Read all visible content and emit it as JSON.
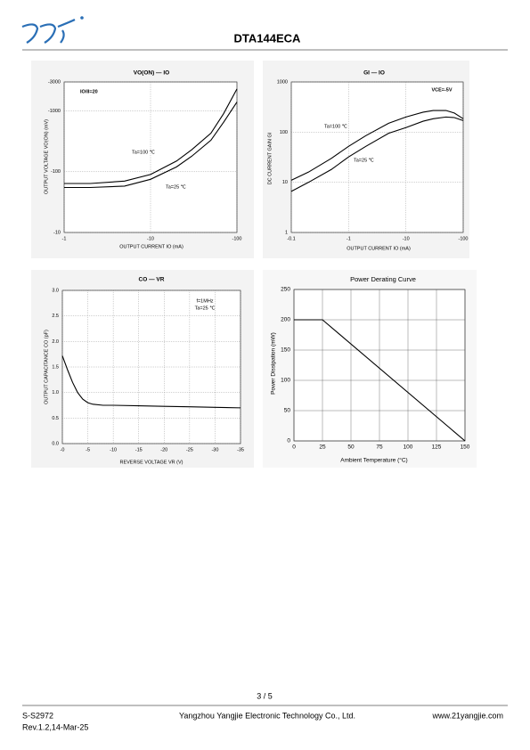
{
  "header": {
    "title": "DTA144ECA"
  },
  "footer": {
    "page": "3 / 5",
    "doc": "S-S2972",
    "rev": "Rev.1.2,14-Mar-25",
    "company": "Yangzhou Yangjie Electronic Technology Co., Ltd.",
    "website": "www.21yangjie.com"
  },
  "chart_data": [
    {
      "type": "line",
      "title": "VO(ON) — IO",
      "x_label": "OUTPUT CURRENT IO (mA)",
      "y_label": "OUTPUT VOLTAGE VO(ON) (mV)",
      "xlog": true,
      "ylog": true,
      "grid": true,
      "xlim": [
        -1,
        -100
      ],
      "ylim": [
        -10,
        -3000
      ],
      "xticks": [
        -1,
        -10,
        -100
      ],
      "yticks": [
        -10,
        -100,
        -1000,
        -3000
      ],
      "x": [
        -1,
        -2,
        -5,
        -10,
        -20,
        -30,
        -50,
        -70,
        -100
      ],
      "series": [
        {
          "name": "Ta=100 ℃",
          "color": "#000000",
          "values": [
            -64,
            -64,
            -70,
            -90,
            -150,
            -230,
            -430,
            -900,
            -2300
          ]
        },
        {
          "name": "Ta=25 ℃",
          "color": "#000000",
          "values": [
            -55,
            -55,
            -58,
            -75,
            -120,
            -180,
            -330,
            -650,
            -1400
          ]
        }
      ],
      "annotations": [
        "IO/II=20"
      ]
    },
    {
      "type": "line",
      "title": "GI — IO",
      "x_label": "OUTPUT CURRENT IO (mA)",
      "y_label": "DC CURRENT GAIN GI",
      "xlog": true,
      "ylog": true,
      "grid": true,
      "xlim": [
        -0.1,
        -100
      ],
      "ylim": [
        1,
        1000
      ],
      "xticks": [
        -0.1,
        -1,
        -10,
        -100
      ],
      "yticks": [
        1,
        10,
        100,
        1000
      ],
      "x": [
        -0.1,
        -0.2,
        -0.5,
        -1,
        -2,
        -5,
        -10,
        -20,
        -30,
        -50,
        -70,
        -100
      ],
      "series": [
        {
          "name": "Ta=100 ℃",
          "color": "#000000",
          "values": [
            11,
            16,
            30,
            52,
            85,
            150,
            200,
            250,
            270,
            270,
            240,
            185
          ]
        },
        {
          "name": "Ta=25 ℃",
          "color": "#000000",
          "values": [
            6.6,
            10,
            18,
            32,
            52,
            95,
            123,
            165,
            185,
            200,
            195,
            170
          ]
        }
      ],
      "annotations": [
        "VCE=-5V"
      ]
    },
    {
      "type": "line",
      "title": "CO — VR",
      "x_label": "REVERSE VOLTAGE VR (V)",
      "y_label": "OUTPUT CAPACITANCE CO (pF)",
      "grid": true,
      "color": "#000000",
      "xlim": [
        0,
        -35
      ],
      "ylim": [
        0,
        3.0
      ],
      "xticks": [
        {
          "value": 0,
          "label": "-0"
        },
        -5,
        -10,
        -15,
        -20,
        -25,
        -30,
        -35
      ],
      "yticks": [
        {
          "value": 0,
          "label": "0.0"
        },
        0.5,
        {
          "value": 1,
          "label": "1.0"
        },
        1.5,
        {
          "value": 2,
          "label": "2.0"
        },
        2.5,
        {
          "value": 3,
          "label": "3.0"
        }
      ],
      "x": [
        0,
        -1,
        -2,
        -3,
        -4,
        -5,
        -6,
        -8,
        -10,
        -15,
        -20,
        -25,
        -30,
        -35
      ],
      "values": [
        1.72,
        1.45,
        1.2,
        1.0,
        0.87,
        0.8,
        0.77,
        0.75,
        0.75,
        0.74,
        0.73,
        0.72,
        0.71,
        0.7
      ],
      "annotations": [
        "f=1MHz",
        "Ta=25 ℃"
      ]
    },
    {
      "type": "line",
      "title": "Power Derating Curve",
      "x_label": "Ambient Temperature (°C)",
      "y_label": "Power Dissipation (mW)",
      "grid": true,
      "color": "#000000",
      "xlim": [
        0,
        150
      ],
      "ylim": [
        0,
        250
      ],
      "xticks": [
        0,
        25,
        50,
        75,
        100,
        125,
        150
      ],
      "yticks": [
        0,
        50,
        100,
        150,
        200,
        250
      ],
      "x": [
        0,
        25,
        150
      ],
      "values": [
        200,
        200,
        0
      ]
    }
  ]
}
